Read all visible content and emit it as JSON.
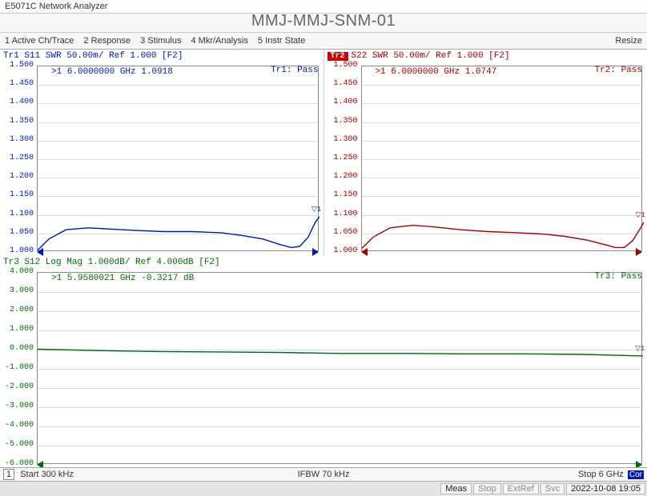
{
  "app": {
    "title": "E5071C Network Analyzer"
  },
  "main_title": "MMJ-MMJ-SNM-01",
  "menu": {
    "items": [
      "1 Active Ch/Trace",
      "2 Response",
      "3 Stimulus",
      "4 Mkr/Analysis",
      "5 Instr State"
    ],
    "right": "Resize"
  },
  "panel1": {
    "header": "Tr1 S11 SWR 50.00m/ Ref 1.000 [F2]",
    "marker": ">1  6.0000000 GHz   1.0918",
    "pass": "Tr1: Pass",
    "yticks": [
      "1.500",
      "1.450",
      "1.400",
      "1.350",
      "1.300",
      "1.250",
      "1.200",
      "1.150",
      "1.100",
      "1.050",
      "1.000"
    ],
    "ylim": [
      1.0,
      1.5
    ],
    "color": "#0018aa",
    "data_x": [
      0,
      0.04,
      0.1,
      0.18,
      0.25,
      0.35,
      0.45,
      0.55,
      0.65,
      0.72,
      0.8,
      0.86,
      0.9,
      0.93,
      0.96,
      0.985,
      1.0
    ],
    "data_y": [
      1.005,
      1.035,
      1.06,
      1.065,
      1.062,
      1.058,
      1.055,
      1.055,
      1.052,
      1.045,
      1.035,
      1.02,
      1.012,
      1.015,
      1.04,
      1.08,
      1.095
    ]
  },
  "panel2": {
    "header_tag": "Tr2",
    "header": " S22 SWR 50.00m/ Ref 1.000 [F2]",
    "marker": ">1  6.0000000 GHz   1.0747",
    "pass": "Tr2: Pass",
    "yticks": [
      "1.500",
      "1.450",
      "1.400",
      "1.350",
      "1.300",
      "1.250",
      "1.200",
      "1.150",
      "1.100",
      "1.050",
      "1.000"
    ],
    "ylim": [
      1.0,
      1.5
    ],
    "color": "#a00000",
    "data_x": [
      0,
      0.04,
      0.1,
      0.18,
      0.25,
      0.35,
      0.45,
      0.55,
      0.65,
      0.72,
      0.8,
      0.86,
      0.9,
      0.93,
      0.96,
      0.985,
      1.0
    ],
    "data_y": [
      1.01,
      1.04,
      1.065,
      1.072,
      1.068,
      1.06,
      1.055,
      1.052,
      1.048,
      1.042,
      1.032,
      1.02,
      1.012,
      1.012,
      1.03,
      1.06,
      1.08
    ]
  },
  "panel3": {
    "header": "Tr3 S12 Log Mag 1.000dB/ Ref 4.000dB [F2]",
    "marker": ">1  5.9580021 GHz  -0.3217 dB",
    "pass": "Tr3: Pass",
    "yticks": [
      "4.000",
      "3.000",
      "2.000",
      "1.000",
      "0.000",
      "-1.000",
      "-2.000",
      "-3.000",
      "-4.000",
      "-5.000",
      "-6.000"
    ],
    "ylim": [
      -6.0,
      4.0
    ],
    "color": "#006800",
    "data_x": [
      0,
      0.1,
      0.2,
      0.3,
      0.4,
      0.5,
      0.6,
      0.7,
      0.8,
      0.9,
      0.96,
      1.0
    ],
    "data_y": [
      0.02,
      -0.05,
      -0.1,
      -0.12,
      -0.15,
      -0.2,
      -0.2,
      -0.22,
      -0.22,
      -0.25,
      -0.3,
      -0.33
    ]
  },
  "status1": {
    "left_num": "1",
    "left": "Start 300 kHz",
    "center": "IFBW 70 kHz",
    "right": "Stop 6 GHz",
    "cor": "Cor"
  },
  "status2": {
    "items": [
      "Meas",
      "Stop",
      "ExtRef",
      "Svc"
    ],
    "active": [
      true,
      false,
      false,
      false
    ],
    "datetime": "2022-10-08 19:05"
  }
}
